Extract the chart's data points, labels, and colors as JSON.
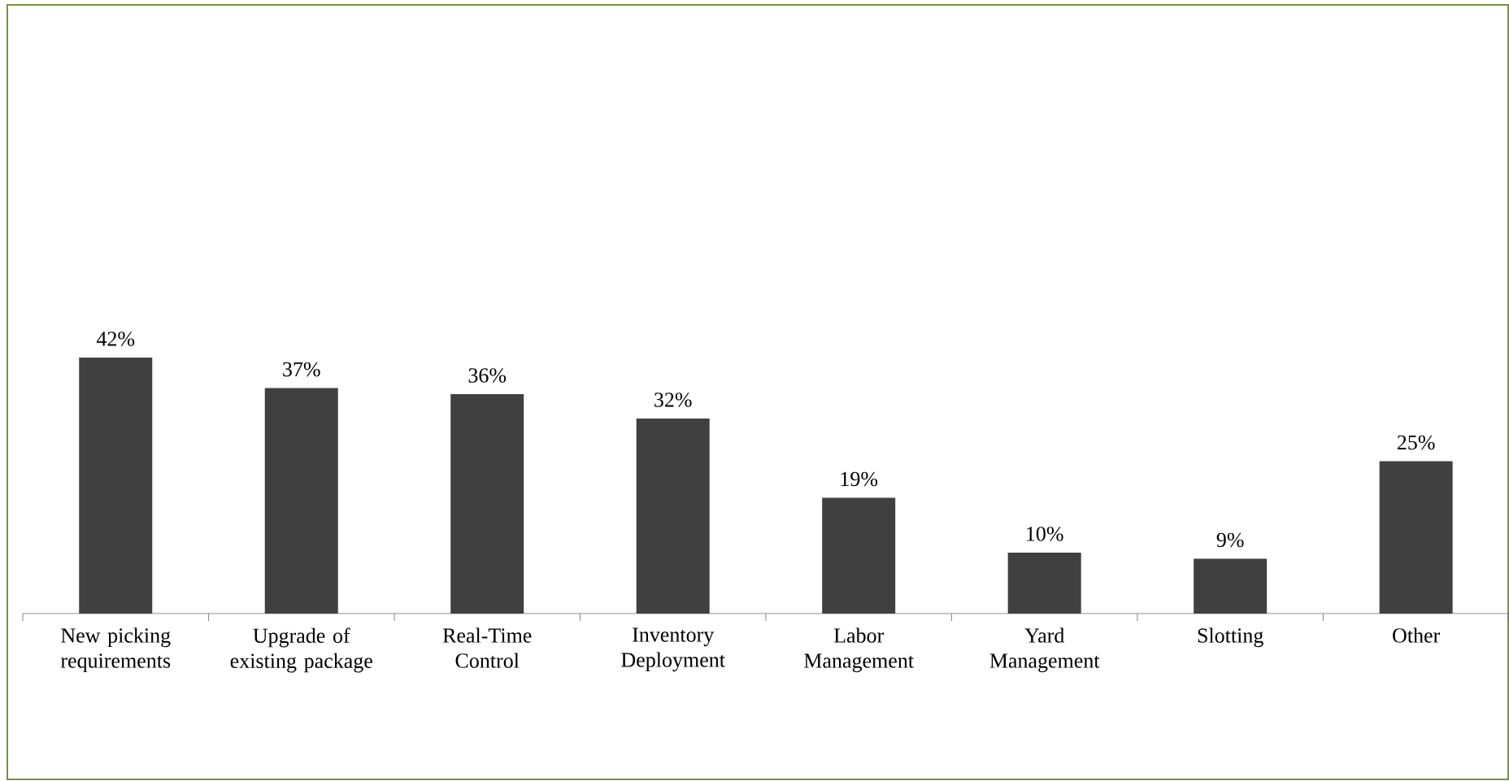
{
  "chart_data": {
    "type": "bar",
    "categories": [
      "New picking requirements",
      "Upgrade of existing package",
      "Real-Time Control",
      "Inventory Deployment",
      "Labor Management",
      "Yard Management",
      "Slotting",
      "Other"
    ],
    "values": [
      42,
      37,
      36,
      32,
      19,
      10,
      9,
      25
    ],
    "value_labels": [
      "42%",
      "37%",
      "36%",
      "32%",
      "19%",
      "10%",
      "9%",
      "25%"
    ],
    "color": "#404040"
  }
}
